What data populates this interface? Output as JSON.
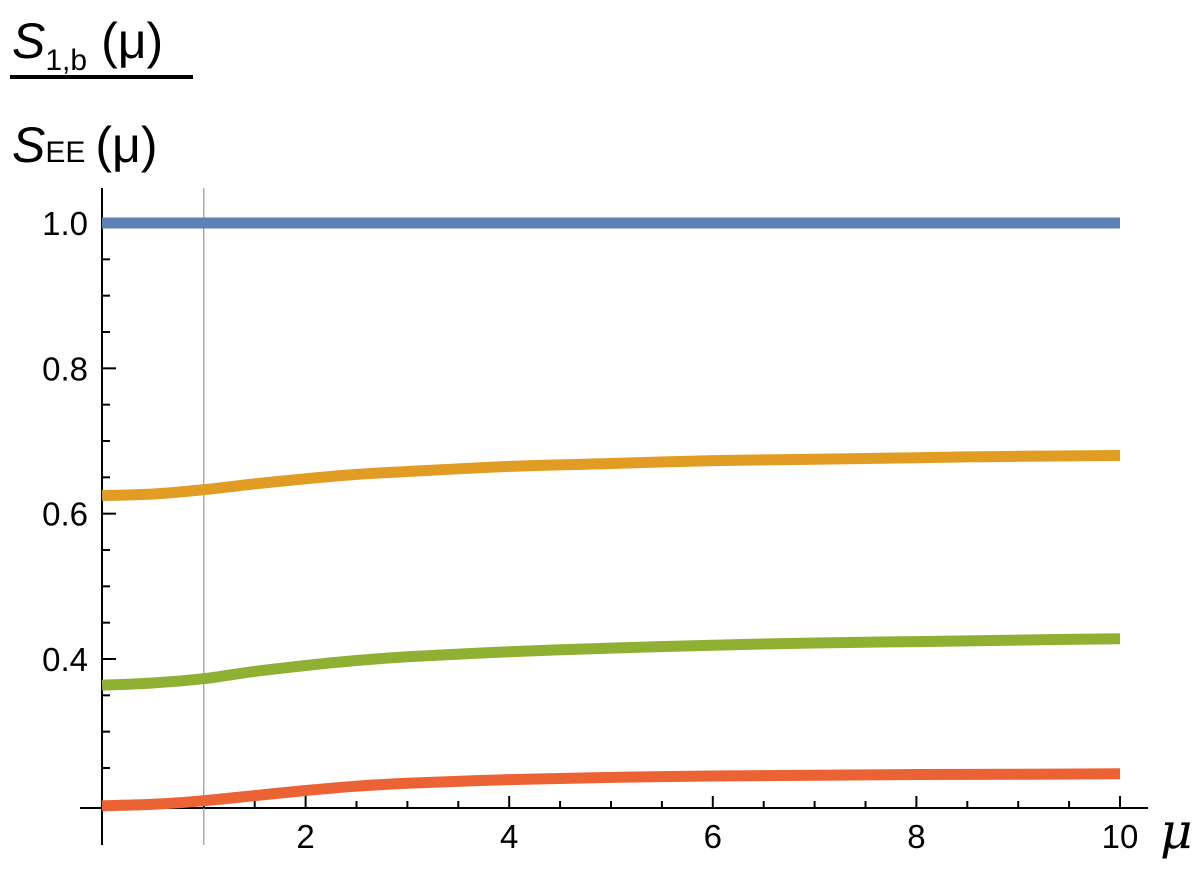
{
  "chart_data": {
    "type": "line",
    "title": "",
    "xlabel": "μ",
    "ylabel": {
      "numerator": {
        "symbol": "S",
        "subscript": "1,b",
        "argument": "(μ)"
      },
      "denominator": {
        "symbol": "S",
        "subscript": "EE",
        "argument": "(μ)"
      }
    },
    "xlim": [
      0,
      10
    ],
    "ylim": [
      0.2,
      1.05
    ],
    "x_ticks_major": [
      2,
      4,
      6,
      8,
      10
    ],
    "x_tick_labels": [
      "2",
      "4",
      "6",
      "8",
      "10"
    ],
    "y_ticks_major": [
      0.4,
      0.6,
      0.8,
      1.0
    ],
    "y_tick_labels": [
      "0.4",
      "0.6",
      "0.8",
      "1.0"
    ],
    "vertical_reference_line": 1,
    "grid": false,
    "legend": "none",
    "series": [
      {
        "color": "#5E81B5",
        "x": [
          0,
          1,
          2,
          3,
          4,
          5,
          6,
          7,
          8,
          9,
          10
        ],
        "y": [
          1.0,
          1.0,
          1.0,
          1.0,
          1.0,
          1.0,
          1.0,
          1.0,
          1.0,
          1.0,
          1.0
        ]
      },
      {
        "color": "#E19C24",
        "x": [
          0,
          0.5,
          1,
          1.5,
          2,
          2.5,
          3,
          4,
          5,
          6,
          7,
          8,
          9,
          10
        ],
        "y": [
          0.625,
          0.627,
          0.633,
          0.641,
          0.648,
          0.654,
          0.658,
          0.665,
          0.669,
          0.673,
          0.675,
          0.677,
          0.679,
          0.68
        ]
      },
      {
        "color": "#8FB032",
        "x": [
          0,
          0.5,
          1,
          1.5,
          2,
          2.5,
          3,
          4,
          5,
          6,
          7,
          8,
          9,
          10
        ],
        "y": [
          0.364,
          0.367,
          0.373,
          0.383,
          0.391,
          0.398,
          0.403,
          0.41,
          0.415,
          0.419,
          0.422,
          0.424,
          0.426,
          0.428
        ]
      },
      {
        "color": "#EB6235",
        "x": [
          0,
          0.5,
          1,
          1.5,
          2,
          2.5,
          3,
          4,
          5,
          6,
          7,
          8,
          9,
          10
        ],
        "y": [
          0.198,
          0.2,
          0.205,
          0.212,
          0.219,
          0.225,
          0.229,
          0.234,
          0.237,
          0.239,
          0.24,
          0.241,
          0.2415,
          0.242
        ]
      }
    ]
  }
}
